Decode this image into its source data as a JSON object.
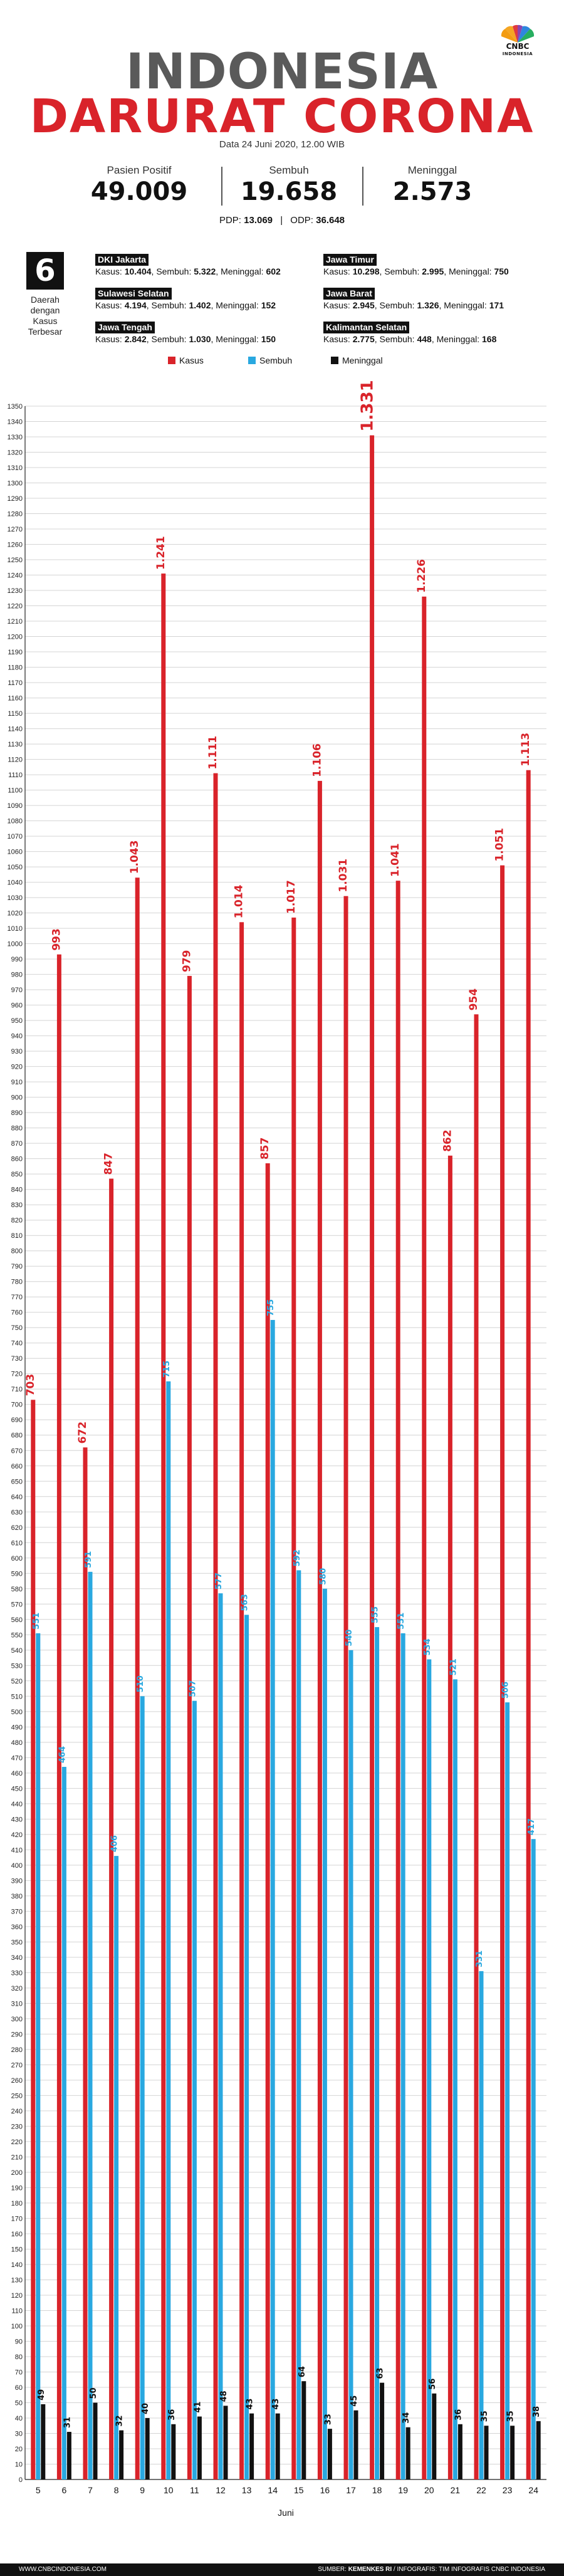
{
  "brand": {
    "name": "CNBC",
    "sub": "INDONESIA"
  },
  "header": {
    "title_line1": "INDONESIA",
    "title_line2": "DARURAT CORONA",
    "date": "Data 24 Juni 2020, 12.00 WIB"
  },
  "stats": [
    {
      "label": "Pasien Positif",
      "value": "49.009"
    },
    {
      "label": "Sembuh",
      "value": "19.658"
    },
    {
      "label": "Meninggal",
      "value": "2.573"
    }
  ],
  "pdp_label": "PDP:",
  "pdp_value": "13.069",
  "odp_label": "ODP:",
  "odp_value": "36.648",
  "top_regions": {
    "count": "6",
    "caption": [
      "Daerah",
      "dengan",
      "Kasus",
      "Terbesar"
    ],
    "kasus_label": "Kasus:",
    "sembuh_label": "Sembuh:",
    "meninggal_label": "Meninggal:",
    "items": [
      {
        "name": "DKI Jakarta",
        "kasus": "10.404",
        "sembuh": "5.322",
        "meninggal": "602"
      },
      {
        "name": "Jawa Timur",
        "kasus": "10.298",
        "sembuh": "2.995",
        "meninggal": "750"
      },
      {
        "name": "Sulawesi Selatan",
        "kasus": "4.194",
        "sembuh": "1.402",
        "meninggal": "152"
      },
      {
        "name": "Jawa Barat",
        "kasus": "2.945",
        "sembuh": "1.326",
        "meninggal": "171"
      },
      {
        "name": "Jawa Tengah",
        "kasus": "2.842",
        "sembuh": "1.030",
        "meninggal": "150"
      },
      {
        "name": "Kalimantan Selatan",
        "kasus": "2.775",
        "sembuh": "448",
        "meninggal": "168"
      }
    ]
  },
  "colors": {
    "kasus": "#d9232a",
    "sembuh": "#29a8e0",
    "meninggal": "#111111",
    "title_gray": "#5a5a5a"
  },
  "chart_data": {
    "type": "bar",
    "xlabel": "Juni",
    "ylabel": "",
    "ylim": [
      0,
      1350
    ],
    "ytick_step": 10,
    "grid": true,
    "legend_position": "top",
    "categories": [
      "5",
      "6",
      "7",
      "8",
      "9",
      "10",
      "11",
      "12",
      "13",
      "14",
      "15",
      "16",
      "17",
      "18",
      "19",
      "20",
      "21",
      "22",
      "23",
      "24"
    ],
    "series": [
      {
        "name": "Kasus",
        "color": "#d9232a",
        "values": [
          703,
          993,
          672,
          847,
          1043,
          1241,
          979,
          1111,
          1014,
          857,
          1017,
          1106,
          1031,
          1331,
          1041,
          1226,
          862,
          954,
          1051,
          1113
        ],
        "labels": [
          "703",
          "993",
          "672",
          "847",
          "1.043",
          "1.241",
          "979",
          "1.111",
          "1.014",
          "857",
          "1.017",
          "1.106",
          "1.031",
          "1.331",
          "1.041",
          "1.226",
          "862",
          "954",
          "1.051",
          "1.113"
        ]
      },
      {
        "name": "Sembuh",
        "color": "#29a8e0",
        "values": [
          551,
          464,
          591,
          406,
          510,
          715,
          507,
          577,
          563,
          755,
          592,
          580,
          540,
          555,
          551,
          534,
          521,
          331,
          506,
          417
        ],
        "labels": [
          "551",
          "464",
          "591",
          "406",
          "510",
          "715",
          "507",
          "577",
          "563",
          "755",
          "592",
          "580",
          "540",
          "555",
          "551",
          "534",
          "521",
          "331",
          "506",
          "417"
        ]
      },
      {
        "name": "Meninggal",
        "color": "#111111",
        "values": [
          49,
          31,
          50,
          32,
          40,
          36,
          41,
          48,
          43,
          43,
          64,
          33,
          45,
          63,
          34,
          56,
          36,
          35,
          35,
          38
        ],
        "labels": [
          "49",
          "31",
          "50",
          "32",
          "40",
          "36",
          "41",
          "48",
          "43",
          "43",
          "64",
          "33",
          "45",
          "63",
          "34",
          "56",
          "36",
          "35",
          "35",
          "38"
        ]
      }
    ]
  },
  "footer": {
    "left": "WWW.CNBCINDONESIA.COM",
    "right_prefix": "SUMBER: ",
    "right_source": "KEMENKES RI",
    "right_suffix": " / INFOGRAFIS: TIM INFOGRAFIS CNBC INDONESIA"
  }
}
